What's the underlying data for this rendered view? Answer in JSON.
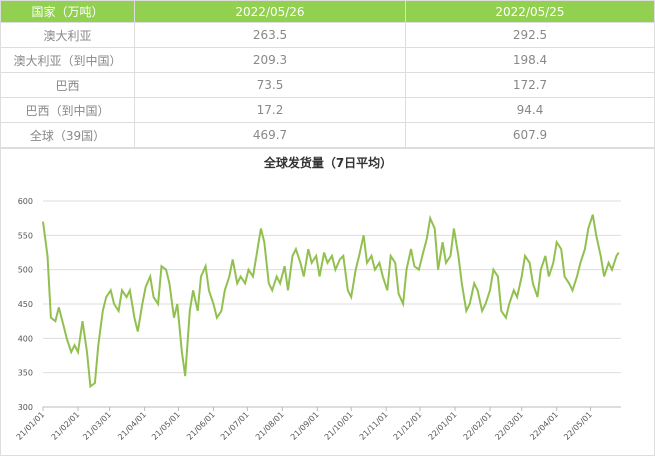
{
  "table": {
    "header": [
      "国家（万吨）",
      "2022/05/26",
      "2022/05/25"
    ],
    "rows": [
      [
        "澳大利亚",
        "263.5",
        "292.5"
      ],
      [
        "澳大利亚（到中国）",
        "209.3",
        "198.4"
      ],
      [
        "巴西",
        "73.5",
        "172.7"
      ],
      [
        "巴西（到中国）",
        "17.2",
        "94.4"
      ],
      [
        "全球（39国）",
        "469.7",
        "607.9"
      ]
    ]
  },
  "chart_data": {
    "type": "line",
    "title": "全球发货量（7日平均）",
    "xlim": [
      "21/01/01",
      "22/05/28"
    ],
    "xticks": [
      "21/01/01",
      "21/02/01",
      "21/03/01",
      "21/04/01",
      "21/05/01",
      "21/06/01",
      "21/07/01",
      "21/08/01",
      "21/09/01",
      "21/10/01",
      "21/11/01",
      "21/12/01",
      "22/01/01",
      "22/02/01",
      "22/03/01",
      "22/04/01",
      "22/05/01"
    ],
    "ylim": [
      300,
      600
    ],
    "yticks": [
      300,
      350,
      400,
      450,
      500,
      550,
      600
    ],
    "grid": true,
    "x": [
      "21/01/01",
      "21/01/05",
      "21/01/08",
      "21/01/12",
      "21/01/15",
      "21/01/19",
      "21/01/22",
      "21/01/26",
      "21/01/29",
      "21/02/01",
      "21/02/05",
      "21/02/09",
      "21/02/12",
      "21/02/16",
      "21/02/19",
      "21/02/23",
      "21/02/26",
      "21/03/02",
      "21/03/05",
      "21/03/09",
      "21/03/12",
      "21/03/16",
      "21/03/19",
      "21/03/23",
      "21/03/26",
      "21/03/30",
      "21/04/02",
      "21/04/06",
      "21/04/09",
      "21/04/13",
      "21/04/16",
      "21/04/20",
      "21/04/23",
      "21/04/27",
      "21/04/30",
      "21/05/04",
      "21/05/07",
      "21/05/11",
      "21/05/14",
      "21/05/18",
      "21/05/21",
      "21/05/25",
      "21/05/28",
      "21/06/01",
      "21/06/04",
      "21/06/08",
      "21/06/11",
      "21/06/15",
      "21/06/18",
      "21/06/22",
      "21/06/25",
      "21/06/29",
      "21/07/02",
      "21/07/06",
      "21/07/09",
      "21/07/13",
      "21/07/16",
      "21/07/20",
      "21/07/23",
      "21/07/27",
      "21/07/30",
      "21/08/03",
      "21/08/06",
      "21/08/10",
      "21/08/13",
      "21/08/17",
      "21/08/20",
      "21/08/24",
      "21/08/27",
      "21/08/31",
      "21/09/03",
      "21/09/07",
      "21/09/10",
      "21/09/14",
      "21/09/17",
      "21/09/21",
      "21/09/24",
      "21/09/28",
      "21/10/01",
      "21/10/05",
      "21/10/08",
      "21/10/12",
      "21/10/15",
      "21/10/19",
      "21/10/22",
      "21/10/26",
      "21/10/29",
      "21/11/02",
      "21/11/05",
      "21/11/09",
      "21/11/12",
      "21/11/16",
      "21/11/19",
      "21/11/23",
      "21/11/26",
      "21/11/30",
      "21/12/03",
      "21/12/07",
      "21/12/10",
      "21/12/14",
      "21/12/17",
      "21/12/21",
      "21/12/24",
      "21/12/28",
      "21/12/31",
      "22/01/04",
      "22/01/07",
      "22/01/11",
      "22/01/14",
      "22/01/18",
      "22/01/21",
      "22/01/25",
      "22/01/28",
      "22/02/01",
      "22/02/04",
      "22/02/08",
      "22/02/11",
      "22/02/15",
      "22/02/18",
      "22/02/22",
      "22/02/25",
      "22/03/01",
      "22/03/04",
      "22/03/08",
      "22/03/11",
      "22/03/15",
      "22/03/18",
      "22/03/22",
      "22/03/25",
      "22/03/29",
      "22/04/01",
      "22/04/05",
      "22/04/08",
      "22/04/12",
      "22/04/15",
      "22/04/19",
      "22/04/22",
      "22/04/26",
      "22/04/29",
      "22/05/03",
      "22/05/06",
      "22/05/10",
      "22/05/13",
      "22/05/17",
      "22/05/20",
      "22/05/24",
      "22/05/26"
    ],
    "series": [
      {
        "name": "全球发货量",
        "color": "#92c050",
        "values": [
          570,
          520,
          430,
          425,
          445,
          420,
          400,
          380,
          390,
          380,
          425,
          380,
          330,
          335,
          390,
          440,
          460,
          470,
          450,
          440,
          470,
          460,
          470,
          430,
          410,
          450,
          475,
          490,
          460,
          450,
          505,
          500,
          480,
          430,
          450,
          380,
          345,
          440,
          470,
          440,
          490,
          505,
          470,
          450,
          430,
          440,
          470,
          490,
          515,
          480,
          490,
          480,
          500,
          490,
          520,
          560,
          540,
          480,
          470,
          490,
          480,
          505,
          470,
          520,
          530,
          510,
          490,
          530,
          510,
          520,
          490,
          525,
          510,
          520,
          500,
          515,
          520,
          470,
          460,
          500,
          520,
          550,
          510,
          520,
          500,
          510,
          490,
          470,
          520,
          510,
          465,
          450,
          500,
          530,
          505,
          500,
          520,
          545,
          575,
          560,
          500,
          540,
          510,
          520,
          560,
          520,
          480,
          440,
          450,
          480,
          470,
          440,
          450,
          470,
          500,
          490,
          440,
          430,
          450,
          470,
          460,
          490,
          520,
          510,
          480,
          460,
          500,
          520,
          490,
          510,
          540,
          530,
          490,
          480,
          470,
          490,
          510,
          530,
          560,
          580,
          550,
          520,
          490,
          510,
          500,
          520,
          525
        ]
      }
    ]
  }
}
